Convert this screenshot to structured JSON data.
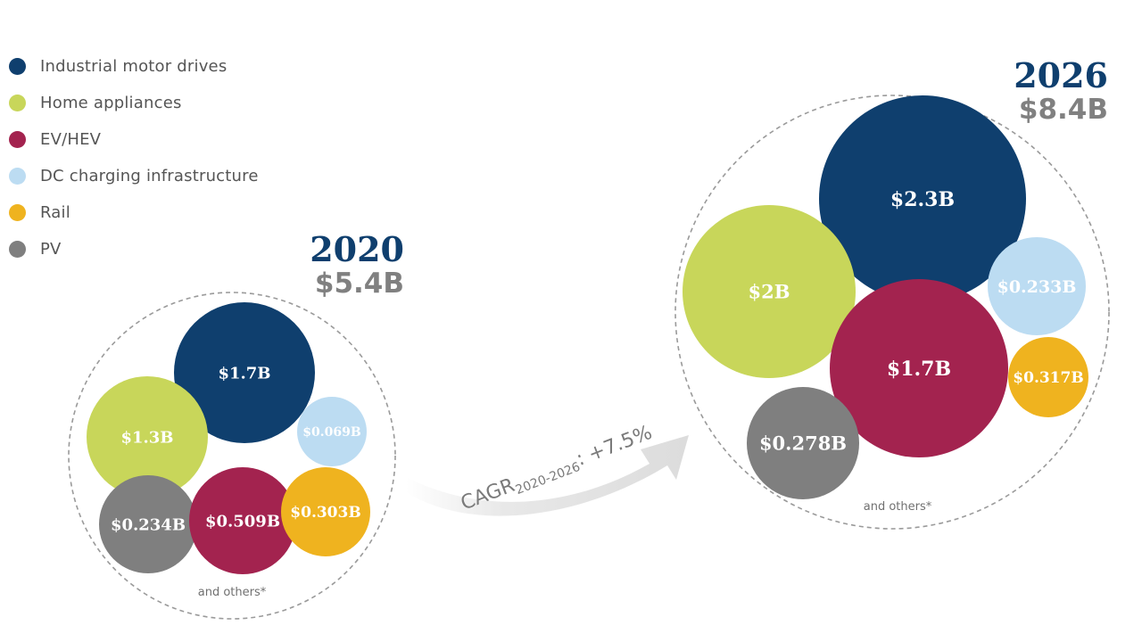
{
  "legend": [
    {
      "label": "Industrial motor drives",
      "color": "#0f3f6e"
    },
    {
      "label": "Home appliances",
      "color": "#c8d65a"
    },
    {
      "label": "EV/HEV",
      "color": "#a3234f"
    },
    {
      "label": "DC charging infrastructure",
      "color": "#bcdcf2"
    },
    {
      "label": "Rail",
      "color": "#efb31f"
    },
    {
      "label": "PV",
      "color": "#7f7f7f"
    }
  ],
  "chart_data": {
    "type": "bubble",
    "cagr": {
      "prefix": "CAGR",
      "subscript": "2020-2026",
      "suffix": ": +7.5%"
    },
    "groups": [
      {
        "year": "2020",
        "total": "$5.4B",
        "others_note": "and others*",
        "segments": [
          {
            "name": "Industrial motor drives",
            "value": 1.7,
            "label": "$1.7B"
          },
          {
            "name": "Home appliances",
            "value": 1.3,
            "label": "$1.3B"
          },
          {
            "name": "DC charging infrastructure",
            "value": 0.069,
            "label": "$0.069B"
          },
          {
            "name": "PV",
            "value": 0.234,
            "label": "$0.234B"
          },
          {
            "name": "EV/HEV",
            "value": 0.509,
            "label": "$0.509B"
          },
          {
            "name": "Rail",
            "value": 0.303,
            "label": "$0.303B"
          }
        ]
      },
      {
        "year": "2026",
        "total": "$8.4B",
        "others_note": "and others*",
        "segments": [
          {
            "name": "Industrial motor drives",
            "value": 2.3,
            "label": "$2.3B"
          },
          {
            "name": "Home appliances",
            "value": 2.0,
            "label": "$2B"
          },
          {
            "name": "DC charging infrastructure",
            "value": 0.233,
            "label": "$0.233B"
          },
          {
            "name": "EV/HEV",
            "value": 1.7,
            "label": "$1.7B"
          },
          {
            "name": "Rail",
            "value": 0.317,
            "label": "$0.317B"
          },
          {
            "name": "PV",
            "value": 0.278,
            "label": "$0.278B"
          }
        ]
      }
    ]
  }
}
